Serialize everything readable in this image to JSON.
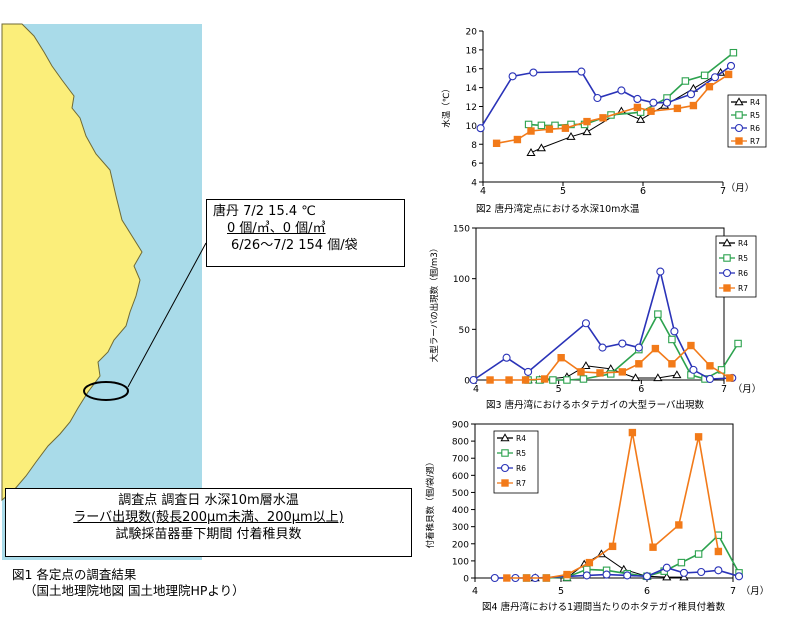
{
  "map": {
    "callout": {
      "line1": "唐丹  7/2    15.4 ℃",
      "line2": "0 個/㎥、0 個/㎥",
      "line3": "6/26～7/2  154 個/袋"
    },
    "legend": {
      "line1": "調査点  調査日  水深10m層水温",
      "line2": "ラーバ出現数(殻長200μm未満、200μm以上)",
      "line3": "試験採苗器垂下期間  付着稚貝数"
    },
    "caption": {
      "line1": "図1  各定点の調査結果",
      "line2": "（国土地理院地図  国土地理院HPより）"
    },
    "colors": {
      "sea": "#a9dbe9",
      "land": "#fbee7a",
      "coast": "#6f6a35"
    }
  },
  "chart_data": [
    {
      "type": "line",
      "title": "図2  唐丹湾定点における水深10m水温",
      "ylabel": "水温（℃）",
      "x_unit_label": "（月）",
      "xticks": [
        4,
        5,
        6,
        7
      ],
      "yticks": [
        4,
        6,
        8,
        10,
        12,
        14,
        16,
        18,
        20
      ],
      "xlim": [
        4,
        7
      ],
      "ylim": [
        4,
        20
      ],
      "legend_position": "right",
      "series": [
        {
          "name": "R4",
          "color": "#000000",
          "marker": "triangle",
          "points": [
            [
              4.6,
              7.1
            ],
            [
              4.73,
              7.6
            ],
            [
              5.1,
              8.8
            ],
            [
              5.3,
              9.3
            ],
            [
              5.73,
              11.5
            ],
            [
              5.97,
              10.6
            ],
            [
              6.27,
              12.1
            ],
            [
              6.63,
              13.9
            ],
            [
              6.97,
              15.6
            ]
          ]
        },
        {
          "name": "R5",
          "color": "#2ca24e",
          "marker": "square",
          "points": [
            [
              4.57,
              10.1
            ],
            [
              4.73,
              10.0
            ],
            [
              4.9,
              10.0
            ],
            [
              5.1,
              10.1
            ],
            [
              5.27,
              10.1
            ],
            [
              5.6,
              11.1
            ],
            [
              5.97,
              11.4
            ],
            [
              6.3,
              12.9
            ],
            [
              6.53,
              14.7
            ],
            [
              6.77,
              15.3
            ],
            [
              7.13,
              17.7
            ]
          ]
        },
        {
          "name": "R6",
          "color": "#2a33b8",
          "marker": "circle",
          "points": [
            [
              3.97,
              9.7
            ],
            [
              4.37,
              15.2
            ],
            [
              4.63,
              15.6
            ],
            [
              5.23,
              15.7
            ],
            [
              5.43,
              12.9
            ],
            [
              5.73,
              13.7
            ],
            [
              5.93,
              12.8
            ],
            [
              6.13,
              12.4
            ],
            [
              6.3,
              12.4
            ],
            [
              6.6,
              13.3
            ],
            [
              6.9,
              15.1
            ],
            [
              7.1,
              16.3
            ]
          ]
        },
        {
          "name": "R7",
          "color": "#f27a19",
          "marker": "square-filled",
          "points": [
            [
              4.17,
              8.1
            ],
            [
              4.43,
              8.5
            ],
            [
              4.6,
              9.4
            ],
            [
              4.83,
              9.6
            ],
            [
              5.03,
              9.7
            ],
            [
              5.3,
              10.4
            ],
            [
              5.5,
              10.8
            ],
            [
              5.93,
              11.9
            ],
            [
              6.1,
              11.5
            ],
            [
              6.43,
              11.8
            ],
            [
              6.63,
              12.1
            ],
            [
              6.83,
              14.1
            ],
            [
              7.07,
              15.4
            ]
          ]
        }
      ]
    },
    {
      "type": "line",
      "title": "図3  唐丹湾におけるホタテガイの大型ラーバ出現数",
      "ylabel": "大型ラーバの出現数（個/m3）",
      "x_unit_label": "（月）",
      "xticks": [
        4,
        5,
        6,
        7
      ],
      "yticks": [
        0,
        50,
        100,
        150
      ],
      "xlim": [
        4,
        7
      ],
      "ylim": [
        0,
        150
      ],
      "legend_position": "top-right",
      "series": [
        {
          "name": "R4",
          "color": "#000000",
          "marker": "triangle",
          "points": [
            [
              4.63,
              0
            ],
            [
              4.77,
              0
            ],
            [
              5.1,
              3
            ],
            [
              5.33,
              14
            ],
            [
              5.63,
              11
            ],
            [
              5.93,
              2
            ],
            [
              6.2,
              2
            ],
            [
              6.43,
              5
            ]
          ]
        },
        {
          "name": "R5",
          "color": "#2ca24e",
          "marker": "square",
          "points": [
            [
              4.63,
              0
            ],
            [
              4.77,
              0
            ],
            [
              4.93,
              0
            ],
            [
              5.1,
              0
            ],
            [
              5.3,
              1
            ],
            [
              5.63,
              6
            ],
            [
              5.97,
              30
            ],
            [
              6.2,
              65
            ],
            [
              6.37,
              40
            ],
            [
              6.6,
              5
            ],
            [
              6.77,
              1
            ],
            [
              6.97,
              10
            ],
            [
              7.17,
              36
            ]
          ]
        },
        {
          "name": "R6",
          "color": "#2a33b8",
          "marker": "circle",
          "points": [
            [
              3.97,
              0
            ],
            [
              4.37,
              22
            ],
            [
              4.63,
              8
            ],
            [
              5.33,
              56
            ],
            [
              5.53,
              32
            ],
            [
              5.77,
              36
            ],
            [
              5.97,
              32
            ],
            [
              6.23,
              107
            ],
            [
              6.4,
              48
            ],
            [
              6.63,
              10
            ],
            [
              6.83,
              1
            ],
            [
              7.1,
              2
            ]
          ]
        },
        {
          "name": "R7",
          "color": "#f27a19",
          "marker": "square-filled",
          "points": [
            [
              4.17,
              0
            ],
            [
              4.4,
              0
            ],
            [
              4.6,
              0
            ],
            [
              4.83,
              1
            ],
            [
              5.03,
              22
            ],
            [
              5.27,
              8
            ],
            [
              5.5,
              7
            ],
            [
              5.77,
              8
            ],
            [
              5.97,
              16
            ],
            [
              6.17,
              31
            ],
            [
              6.37,
              16
            ],
            [
              6.6,
              34
            ],
            [
              6.83,
              14
            ],
            [
              7.07,
              2
            ]
          ]
        }
      ]
    },
    {
      "type": "line",
      "title": "図4  唐丹湾における1週間当たりのホタテガイ稚貝付着数",
      "ylabel": "付着稚貝数（個/袋/週）",
      "x_unit_label": "（月）",
      "xticks": [
        4,
        5,
        6,
        7
      ],
      "yticks": [
        0,
        100,
        200,
        300,
        400,
        500,
        600,
        700,
        800,
        900
      ],
      "xlim": [
        4,
        7
      ],
      "ylim": [
        0,
        900
      ],
      "legend_position": "top-left",
      "series": [
        {
          "name": "R4",
          "color": "#000000",
          "marker": "triangle",
          "points": [
            [
              4.7,
              0
            ],
            [
              5.07,
              0
            ],
            [
              5.27,
              80
            ],
            [
              5.47,
              140
            ],
            [
              5.73,
              50
            ],
            [
              6.0,
              10
            ],
            [
              6.23,
              5
            ],
            [
              6.43,
              5
            ]
          ]
        },
        {
          "name": "R5",
          "color": "#2ca24e",
          "marker": "square",
          "points": [
            [
              4.6,
              0
            ],
            [
              4.83,
              0
            ],
            [
              5.07,
              5
            ],
            [
              5.3,
              50
            ],
            [
              5.53,
              45
            ],
            [
              5.77,
              25
            ],
            [
              6.0,
              10
            ],
            [
              6.2,
              40
            ],
            [
              6.4,
              90
            ],
            [
              6.6,
              140
            ],
            [
              6.83,
              250
            ],
            [
              7.07,
              30
            ]
          ]
        },
        {
          "name": "R6",
          "color": "#2a33b8",
          "marker": "circle",
          "points": [
            [
              4.23,
              0
            ],
            [
              4.47,
              0
            ],
            [
              4.7,
              0
            ],
            [
              5.3,
              15
            ],
            [
              5.53,
              20
            ],
            [
              5.77,
              15
            ],
            [
              6.0,
              10
            ],
            [
              6.23,
              60
            ],
            [
              6.43,
              30
            ],
            [
              6.63,
              35
            ],
            [
              6.83,
              45
            ],
            [
              7.07,
              10
            ]
          ]
        },
        {
          "name": "R7",
          "color": "#f27a19",
          "marker": "square-filled",
          "points": [
            [
              4.37,
              0
            ],
            [
              4.6,
              0
            ],
            [
              4.83,
              0
            ],
            [
              5.07,
              20
            ],
            [
              5.33,
              90
            ],
            [
              5.6,
              185
            ],
            [
              5.83,
              850
            ],
            [
              6.07,
              180
            ],
            [
              6.37,
              310
            ],
            [
              6.6,
              825
            ],
            [
              6.83,
              155
            ]
          ]
        }
      ]
    }
  ]
}
